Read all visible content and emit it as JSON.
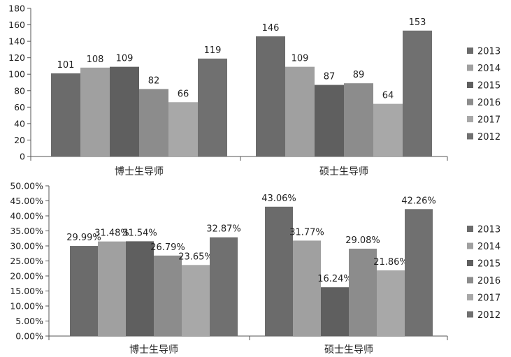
{
  "chart_data": [
    {
      "type": "bar",
      "categories": [
        "博士生导师",
        "硕士生导师"
      ],
      "series": [
        {
          "name": "2013",
          "values": [
            101,
            146
          ]
        },
        {
          "name": "2014",
          "values": [
            108,
            109
          ]
        },
        {
          "name": "2015",
          "values": [
            109,
            87
          ]
        },
        {
          "name": "2016",
          "values": [
            82,
            89
          ]
        },
        {
          "name": "2017",
          "values": [
            66,
            64
          ]
        },
        {
          "name": "2012",
          "values": [
            119,
            153
          ]
        }
      ],
      "data_labels": [
        [
          "101",
          "108",
          "109",
          "82",
          "66",
          "119"
        ],
        [
          "146",
          "109",
          "87",
          "89",
          "64",
          "153"
        ]
      ],
      "ylim": [
        0,
        180
      ],
      "yticks": [
        "0",
        "20",
        "40",
        "60",
        "80",
        "100",
        "120",
        "140",
        "160",
        "180"
      ],
      "colors": [
        "#6b6b6b",
        "#a0a0a0",
        "#5f5f5f",
        "#8c8c8c",
        "#a8a8a8",
        "#707070"
      ],
      "legend_position": "right",
      "grid": false
    },
    {
      "type": "bar",
      "categories": [
        "博士生导师",
        "硕士生导师"
      ],
      "series": [
        {
          "name": "2013",
          "values": [
            29.99,
            43.06
          ]
        },
        {
          "name": "2014",
          "values": [
            31.48,
            31.77
          ]
        },
        {
          "name": "2015",
          "values": [
            31.54,
            16.24
          ]
        },
        {
          "name": "2016",
          "values": [
            26.79,
            29.08
          ]
        },
        {
          "name": "2017",
          "values": [
            23.65,
            21.86
          ]
        },
        {
          "name": "2012",
          "values": [
            32.87,
            42.26
          ]
        }
      ],
      "data_labels": [
        [
          "29.99%",
          "31.48%",
          "31.54%",
          "26.79%",
          "23.65%",
          "32.87%"
        ],
        [
          "43.06%",
          "31.77%",
          "16.24%",
          "29.08%",
          "21.86%",
          "42.26%"
        ]
      ],
      "ylim": [
        0,
        50
      ],
      "yticks": [
        "0.00%",
        "5.00%",
        "10.00%",
        "15.00%",
        "20.00%",
        "25.00%",
        "30.00%",
        "35.00%",
        "40.00%",
        "45.00%",
        "50.00%"
      ],
      "colors": [
        "#6b6b6b",
        "#a0a0a0",
        "#5f5f5f",
        "#8c8c8c",
        "#a8a8a8",
        "#707070"
      ],
      "legend_position": "right",
      "grid": false
    }
  ]
}
